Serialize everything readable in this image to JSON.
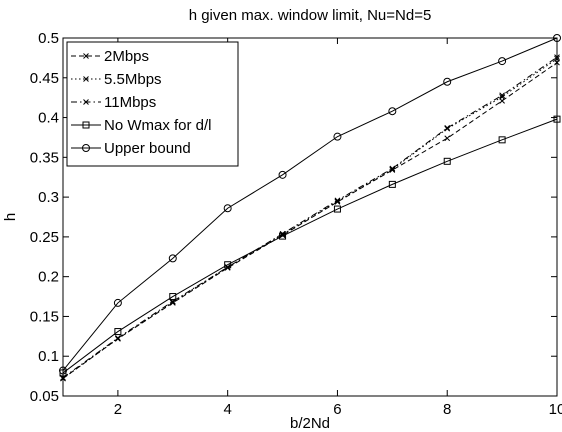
{
  "chart_data": {
    "type": "line",
    "title": "h given max. window limit, Nu=Nd=5",
    "xlabel": "b/2Nd",
    "ylabel": "h",
    "xlim": [
      1,
      10
    ],
    "ylim": [
      0.05,
      0.5
    ],
    "xticks": [
      2,
      4,
      6,
      8,
      10
    ],
    "yticks": [
      0.05,
      0.1,
      0.15,
      0.2,
      0.25,
      0.3,
      0.35,
      0.4,
      0.45,
      0.5
    ],
    "xtick_labels": [
      "2",
      "4",
      "6",
      "8",
      "10"
    ],
    "ytick_labels": [
      "0.05",
      "0.1",
      "0.15",
      "0.2",
      "0.25",
      "0.3",
      "0.35",
      "0.4",
      "0.45",
      "0.5"
    ],
    "grid": false,
    "legend_position": "top-left",
    "x": [
      1,
      2,
      3,
      4,
      5,
      6,
      7,
      8,
      9,
      10
    ],
    "series": [
      {
        "name": "2Mbps",
        "style": "dashed",
        "marker": "x",
        "color": "#000000",
        "values": [
          0.072,
          0.122,
          0.167,
          0.211,
          0.252,
          0.294,
          0.334,
          0.374,
          0.421,
          0.469
        ]
      },
      {
        "name": "5.5Mbps",
        "style": "dotted",
        "marker": "x",
        "color": "#000000",
        "values": [
          0.072,
          0.122,
          0.168,
          0.212,
          0.253,
          0.295,
          0.335,
          0.386,
          0.426,
          0.474
        ]
      },
      {
        "name": "11Mbps",
        "style": "dashdot",
        "marker": "x",
        "color": "#000000",
        "values": [
          0.073,
          0.123,
          0.169,
          0.212,
          0.254,
          0.296,
          0.336,
          0.387,
          0.428,
          0.476
        ]
      },
      {
        "name": "No Wmax for d/l",
        "style": "solid",
        "marker": "square",
        "color": "#000000",
        "values": [
          0.079,
          0.131,
          0.175,
          0.215,
          0.251,
          0.285,
          0.316,
          0.345,
          0.372,
          0.398
        ]
      },
      {
        "name": "Upper bound",
        "style": "solid",
        "marker": "circle",
        "color": "#000000",
        "values": [
          0.082,
          0.167,
          0.223,
          0.286,
          0.328,
          0.376,
          0.408,
          0.445,
          0.471,
          0.5
        ]
      }
    ]
  }
}
